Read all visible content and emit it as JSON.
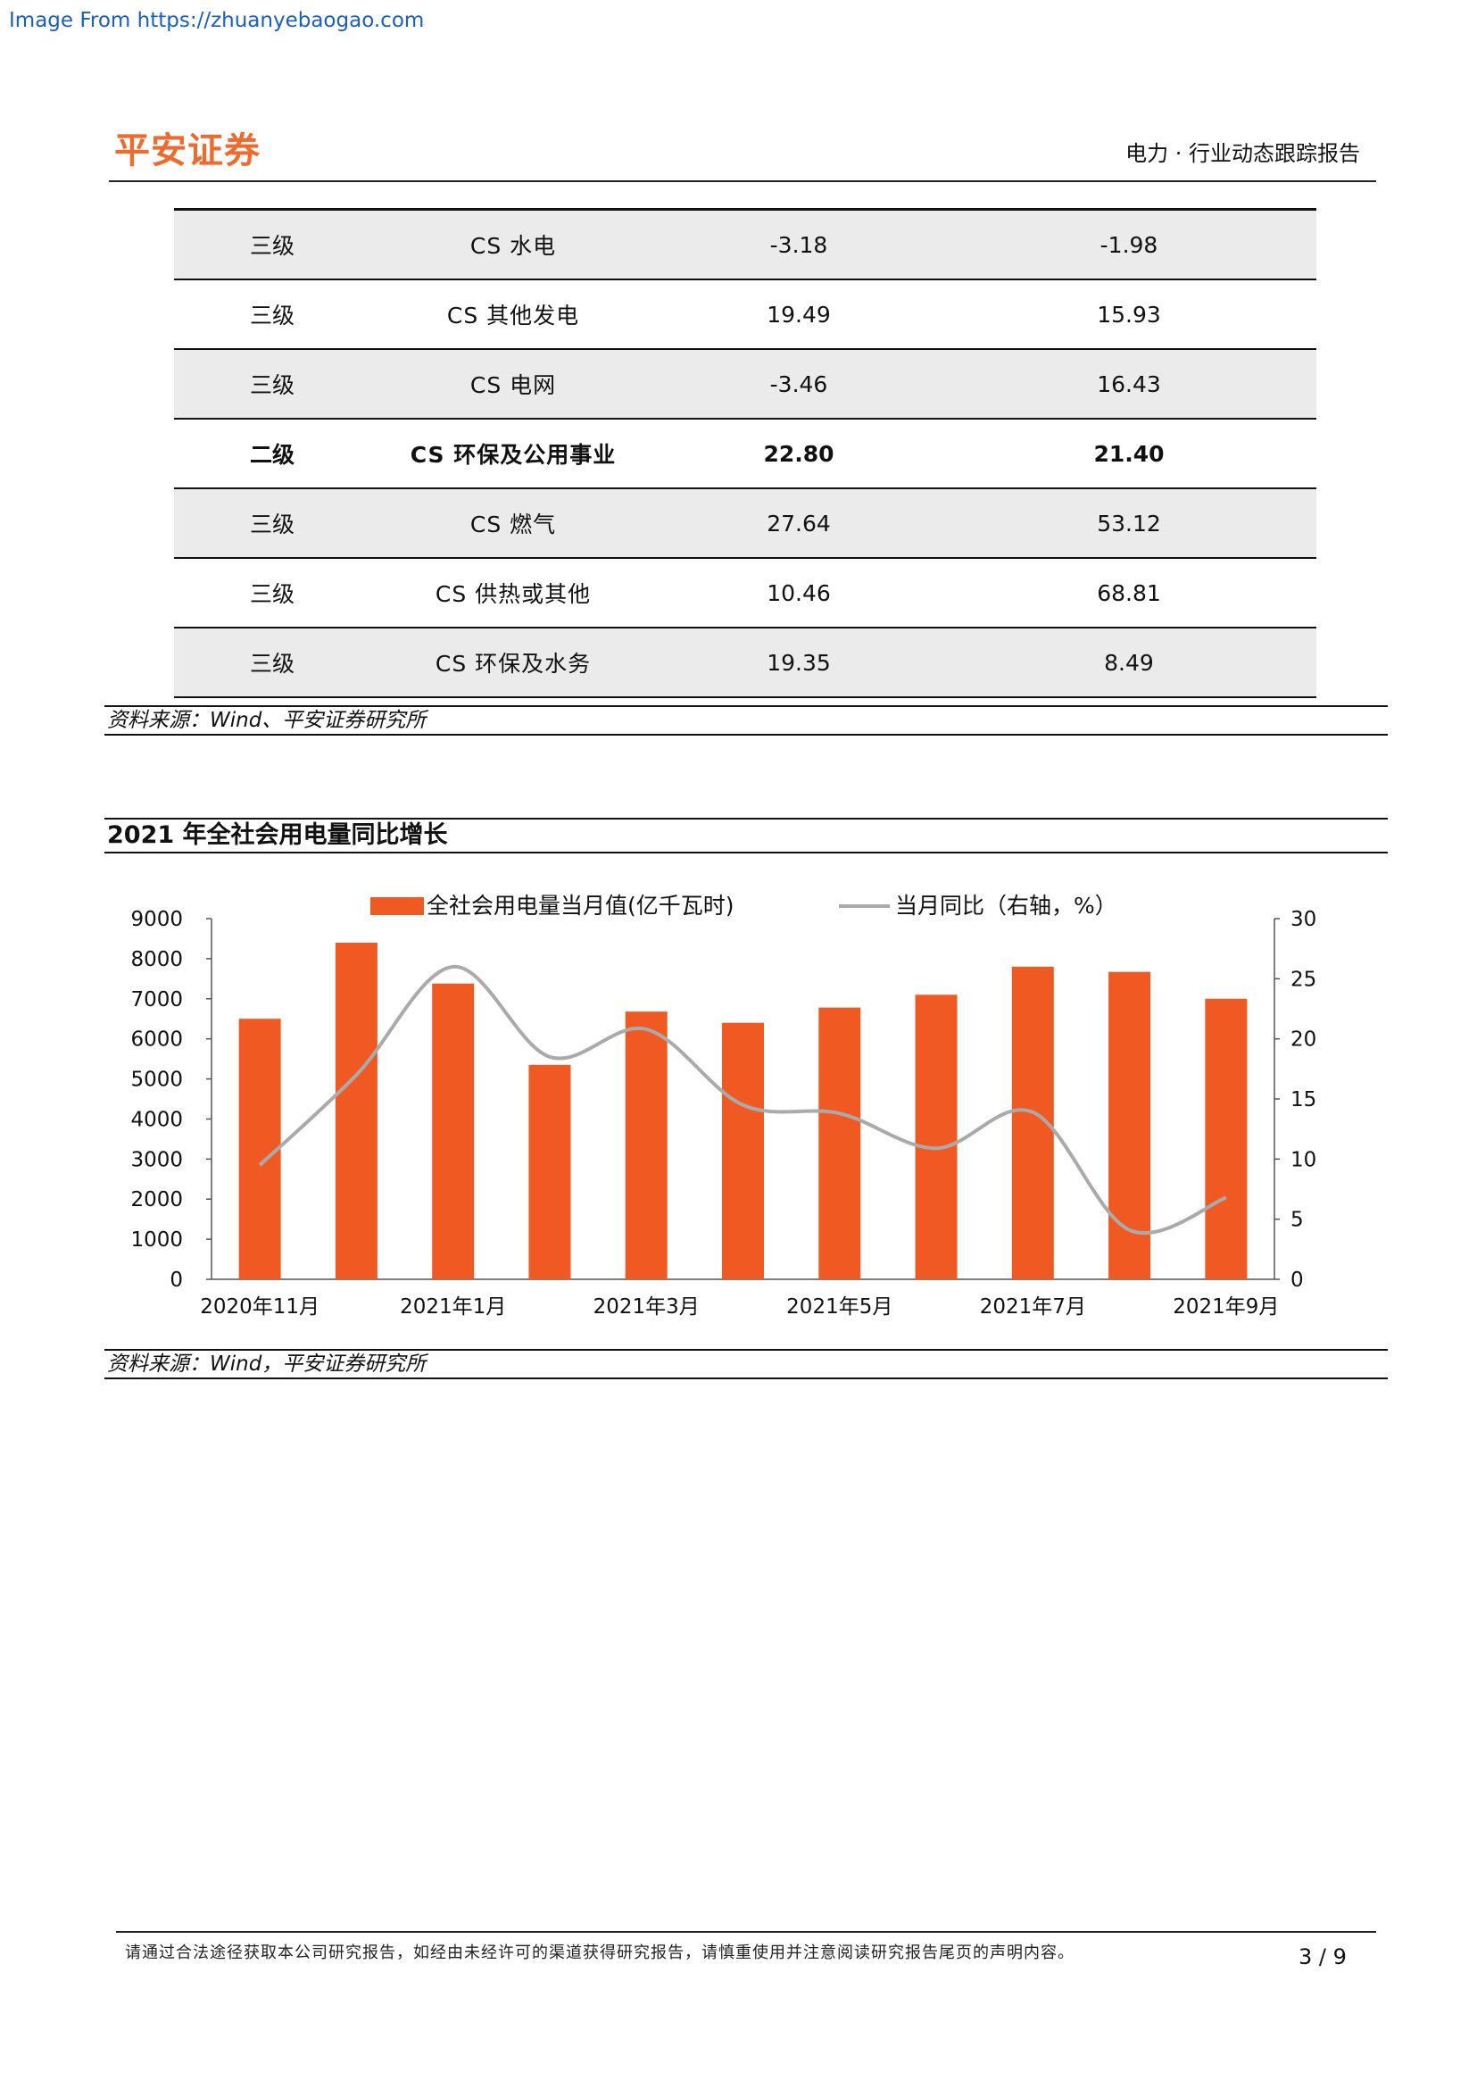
{
  "watermark": "Image From https://zhuanyebaogao.com",
  "header": {
    "logo": "平安证券",
    "report_title": "电力 · 行业动态跟踪报告"
  },
  "table": {
    "rows": [
      {
        "level": "三级",
        "name": "CS 水电",
        "v1": "-3.18",
        "v2": "-1.98",
        "shaded": true,
        "bold": false
      },
      {
        "level": "三级",
        "name": "CS 其他发电",
        "v1": "19.49",
        "v2": "15.93",
        "shaded": false,
        "bold": false
      },
      {
        "level": "三级",
        "name": "CS 电网",
        "v1": "-3.46",
        "v2": "16.43",
        "shaded": true,
        "bold": false
      },
      {
        "level": "二级",
        "name": "CS 环保及公用事业",
        "v1": "22.80",
        "v2": "21.40",
        "shaded": false,
        "bold": true
      },
      {
        "level": "三级",
        "name": "CS 燃气",
        "v1": "27.64",
        "v2": "53.12",
        "shaded": true,
        "bold": false
      },
      {
        "level": "三级",
        "name": "CS 供热或其他",
        "v1": "10.46",
        "v2": "68.81",
        "shaded": false,
        "bold": false
      },
      {
        "level": "三级",
        "name": "CS 环保及水务",
        "v1": "19.35",
        "v2": "8.49",
        "shaded": true,
        "bold": false
      }
    ],
    "source": "资料来源：Wind、平安证券研究所"
  },
  "chart_section": {
    "title": "2021 年全社会用电量同比增长",
    "source": "资料来源：Wind，平安证券研究所"
  },
  "chart_data": {
    "type": "bar",
    "categories": [
      "2020年11月",
      "2020年12月",
      "2021年1月",
      "2021年2月",
      "2021年3月",
      "2021年4月",
      "2021年5月",
      "2021年6月",
      "2021年7月",
      "2021年8月",
      "2021年9月"
    ],
    "x_tick_labels": [
      "2020年11月",
      "",
      "2021年1月",
      "",
      "2021年3月",
      "",
      "2021年5月",
      "",
      "2021年7月",
      "",
      "2021年9月"
    ],
    "series": [
      {
        "name": "全社会用电量当月值(亿千瓦时)",
        "type": "bar",
        "axis": "left",
        "color": "#f05a22",
        "values": [
          6500,
          8400,
          7380,
          5350,
          6680,
          6400,
          6780,
          7100,
          7800,
          7670,
          7000
        ]
      },
      {
        "name": "当月同比（右轴，%）",
        "type": "line",
        "axis": "right",
        "color": "#aaaaaa",
        "values": [
          9.5,
          17.0,
          26.0,
          18.5,
          20.8,
          14.5,
          13.8,
          10.9,
          13.9,
          4.1,
          6.8
        ]
      }
    ],
    "ylim_left": [
      0,
      9000
    ],
    "yticks_left": [
      "0",
      "1000",
      "2000",
      "3000",
      "4000",
      "5000",
      "6000",
      "7000",
      "8000",
      "9000"
    ],
    "ylim_right": [
      0,
      30
    ],
    "yticks_right": [
      "0",
      "5",
      "10",
      "15",
      "20",
      "25",
      "30"
    ],
    "legend_position": "top",
    "grid": false
  },
  "footer": {
    "disclaimer": "请通过合法途径获取本公司研究报告，如经由未经许可的渠道获得研究报告，请慎重使用并注意阅读研究报告尾页的声明内容。",
    "page": "3 / 9"
  }
}
